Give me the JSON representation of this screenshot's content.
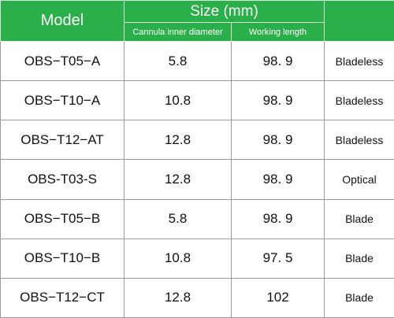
{
  "header": {
    "model": "Model",
    "size": "Size (mm)",
    "sub": [
      "Cannula inner diameter",
      "Working length"
    ]
  },
  "table": {
    "rows": [
      [
        "OBS−T05−A",
        "5.8",
        "98. 9",
        "Bladeless"
      ],
      [
        "OBS−T10−A",
        "10.8",
        "98. 9",
        "Bladeless"
      ],
      [
        "OBS−T12−AT",
        "12.8",
        "98. 9",
        "Bladeless"
      ],
      [
        "OBS-T03-S",
        "12.8",
        "98. 9",
        "Optical"
      ],
      [
        "OBS−T05−B",
        "5.8",
        "98. 9",
        "Blade"
      ],
      [
        "OBS−T10−B",
        "10.8",
        "97. 5",
        "Blade"
      ],
      [
        "OBS−T12−CT",
        "12.8",
        "102",
        "Blade"
      ]
    ]
  }
}
